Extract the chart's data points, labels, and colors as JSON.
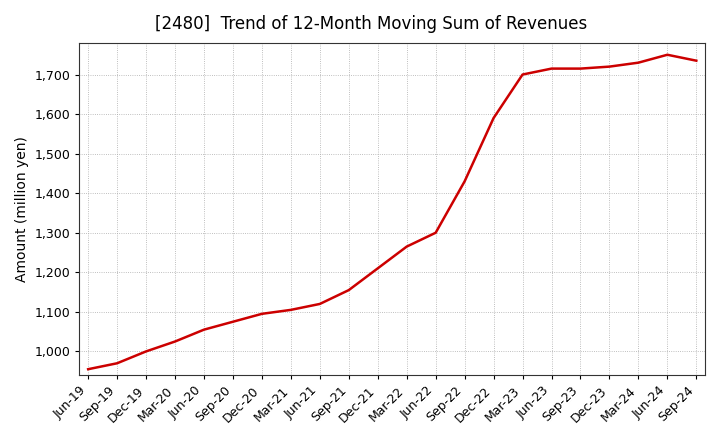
{
  "title": "[2480]  Trend of 12-Month Moving Sum of Revenues",
  "ylabel": "Amount (million yen)",
  "line_color": "#cc0000",
  "background_color": "#ffffff",
  "plot_bg_color": "#ffffff",
  "grid_color": "#aaaaaa",
  "ylim": [
    940,
    1780
  ],
  "yticks": [
    1000,
    1100,
    1200,
    1300,
    1400,
    1500,
    1600,
    1700
  ],
  "x_labels": [
    "Jun-19",
    "Sep-19",
    "Dec-19",
    "Mar-20",
    "Jun-20",
    "Sep-20",
    "Dec-20",
    "Mar-21",
    "Jun-21",
    "Sep-21",
    "Dec-21",
    "Mar-22",
    "Jun-22",
    "Sep-22",
    "Dec-22",
    "Mar-23",
    "Jun-23",
    "Sep-23",
    "Dec-23",
    "Mar-24",
    "Jun-24",
    "Sep-24"
  ],
  "values": [
    955,
    970,
    1000,
    1025,
    1055,
    1075,
    1095,
    1105,
    1120,
    1155,
    1210,
    1265,
    1300,
    1430,
    1590,
    1700,
    1715,
    1715,
    1720,
    1730,
    1750,
    1735
  ]
}
